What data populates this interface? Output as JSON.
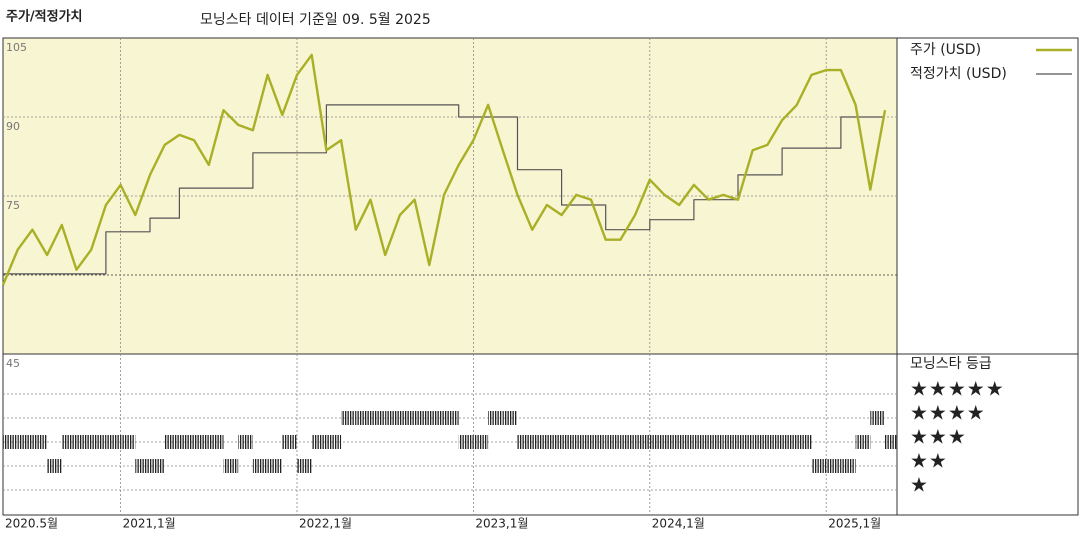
{
  "chart_data": {
    "type": "line",
    "title": "주가/적정가치",
    "subtitle": "모닝스타 데이터 기준일 09. 5월 2025",
    "x": [
      "2020-05",
      "2020-06",
      "2020-07",
      "2020-08",
      "2020-09",
      "2020-10",
      "2020-11",
      "2020-12",
      "2021-01",
      "2021-02",
      "2021-03",
      "2021-04",
      "2021-05",
      "2021-06",
      "2021-07",
      "2021-08",
      "2021-09",
      "2021-10",
      "2021-11",
      "2021-12",
      "2022-01",
      "2022-02",
      "2022-03",
      "2022-04",
      "2022-05",
      "2022-06",
      "2022-07",
      "2022-08",
      "2022-09",
      "2022-10",
      "2022-11",
      "2022-12",
      "2023-01",
      "2023-02",
      "2023-03",
      "2023-04",
      "2023-05",
      "2023-06",
      "2023-07",
      "2023-08",
      "2023-09",
      "2023-10",
      "2023-11",
      "2023-12",
      "2024-01",
      "2024-02",
      "2024-03",
      "2024-04",
      "2024-05",
      "2024-06",
      "2024-07",
      "2024-08",
      "2024-09",
      "2024-10",
      "2024-11",
      "2024-12",
      "2025-01",
      "2025-02",
      "2025-03",
      "2025-04",
      "2025-05"
    ],
    "series": [
      {
        "name": "주가 (USD)",
        "color": "#a9b026",
        "step": false,
        "values": [
          58.1,
          64.8,
          68.6,
          63.8,
          69.5,
          61.0,
          64.8,
          73.3,
          77.1,
          71.4,
          79.0,
          84.7,
          86.6,
          85.6,
          80.9,
          91.3,
          88.5,
          87.5,
          98.0,
          90.4,
          98.0,
          101.8,
          83.7,
          85.6,
          68.6,
          74.3,
          63.8,
          71.4,
          74.3,
          61.9,
          75.2,
          80.9,
          85.6,
          92.3,
          83.7,
          75.2,
          68.6,
          73.3,
          71.4,
          75.2,
          74.3,
          66.7,
          66.7,
          71.4,
          78.1,
          75.2,
          73.3,
          77.1,
          74.3,
          75.2,
          74.3,
          83.7,
          84.7,
          89.4,
          92.3,
          98.0,
          98.9,
          98.9,
          92.3,
          76.2,
          91.3
        ]
      },
      {
        "name": "적정가치 (USD)",
        "color": "#555555",
        "step": true,
        "values": [
          60.2,
          60.2,
          60.2,
          60.2,
          60.2,
          60.2,
          60.2,
          68.2,
          68.2,
          68.2,
          70.8,
          70.8,
          76.5,
          76.5,
          76.5,
          76.5,
          76.5,
          83.2,
          83.2,
          83.2,
          83.2,
          83.2,
          92.3,
          92.3,
          92.3,
          92.3,
          92.3,
          92.3,
          92.3,
          92.3,
          92.3,
          90,
          90,
          90,
          90,
          80,
          80,
          80,
          73.3,
          73.3,
          73.3,
          68.6,
          68.6,
          68.6,
          70.5,
          70.5,
          70.5,
          74.3,
          74.3,
          74.3,
          79,
          79,
          79,
          84.1,
          84.1,
          84.1,
          84.1,
          90,
          90,
          90,
          90
        ]
      }
    ],
    "ylim": [
      45,
      105
    ],
    "yticks": [
      45,
      75,
      90,
      105
    ],
    "xticks": [
      {
        "value": "2020-05",
        "label": "2020.5월"
      },
      {
        "value": "2021-01",
        "label": "2021,1월"
      },
      {
        "value": "2022-01",
        "label": "2022,1월"
      },
      {
        "value": "2023-01",
        "label": "2023,1월"
      },
      {
        "value": "2024-01",
        "label": "2024,1월"
      },
      {
        "value": "2025-01",
        "label": "2025,1월"
      }
    ],
    "background": "#f8f5d3",
    "rating_title": "모닝스타 등급",
    "ratings": [
      3,
      3,
      3,
      2,
      3,
      3,
      3,
      3,
      3,
      2,
      2,
      3,
      3,
      3,
      3,
      2,
      3,
      2,
      2,
      3,
      2,
      3,
      3,
      4,
      4,
      4,
      4,
      4,
      4,
      4,
      4,
      3,
      3,
      4,
      4,
      3,
      3,
      3,
      3,
      3,
      3,
      3,
      3,
      3,
      3,
      3,
      3,
      3,
      3,
      3,
      3,
      3,
      3,
      3,
      3,
      2,
      2,
      2,
      3,
      4,
      3
    ],
    "rating_ticks": [
      {
        "value": 5,
        "label": "★★★★★"
      },
      {
        "value": 4,
        "label": "★★★★"
      },
      {
        "value": 3,
        "label": "★★★"
      },
      {
        "value": 2,
        "label": "★★"
      },
      {
        "value": 1,
        "label": "★"
      }
    ]
  }
}
